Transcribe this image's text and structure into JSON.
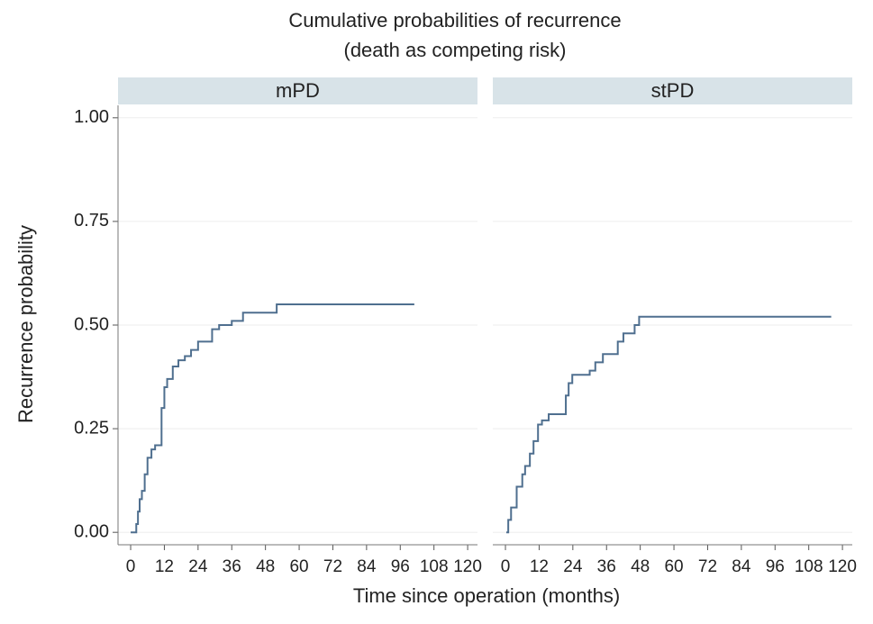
{
  "chart_data": {
    "type": "step",
    "title": "Cumulative probabilities of recurrence",
    "subtitle": "(death as competing risk)",
    "x_label": "Time since operation (months)",
    "y_label": "Recurrence probability",
    "color": "#4f6f8f",
    "grid": true,
    "xlim": [
      -4.5,
      123.5
    ],
    "ylim": [
      -0.03,
      1.03
    ],
    "xticks": [
      0,
      12,
      24,
      36,
      48,
      60,
      72,
      84,
      96,
      108,
      120
    ],
    "yticks": [
      {
        "value": 0,
        "label": "0.00"
      },
      {
        "value": 0.25,
        "label": "0.25"
      },
      {
        "value": 0.5,
        "label": "0.50"
      },
      {
        "value": 0.75,
        "label": "0.75"
      },
      {
        "value": 1,
        "label": "1.00"
      }
    ],
    "panels": [
      {
        "name": "mPD",
        "x": [
          0,
          2,
          2.6,
          3.2,
          4,
          5,
          6,
          7.4,
          8.7,
          11,
          12,
          13,
          15,
          17,
          19.3,
          21.5,
          24,
          29,
          31.5,
          36,
          40,
          52,
          101
        ],
        "values": [
          0,
          0.02,
          0.05,
          0.08,
          0.1,
          0.14,
          0.18,
          0.2,
          0.21,
          0.3,
          0.35,
          0.37,
          0.4,
          0.415,
          0.425,
          0.44,
          0.46,
          0.49,
          0.5,
          0.51,
          0.53,
          0.55,
          0.55
        ]
      },
      {
        "name": "stPD",
        "x": [
          0.3,
          1,
          2,
          4,
          6,
          7,
          8.7,
          10,
          11.6,
          13,
          15.4,
          21.5,
          22.5,
          23.8,
          30,
          32,
          34.7,
          40,
          42,
          46,
          47.6,
          116
        ],
        "values": [
          0,
          0.03,
          0.06,
          0.11,
          0.14,
          0.16,
          0.19,
          0.22,
          0.26,
          0.27,
          0.285,
          0.33,
          0.36,
          0.38,
          0.39,
          0.41,
          0.43,
          0.46,
          0.48,
          0.5,
          0.52,
          0.52
        ]
      }
    ]
  }
}
